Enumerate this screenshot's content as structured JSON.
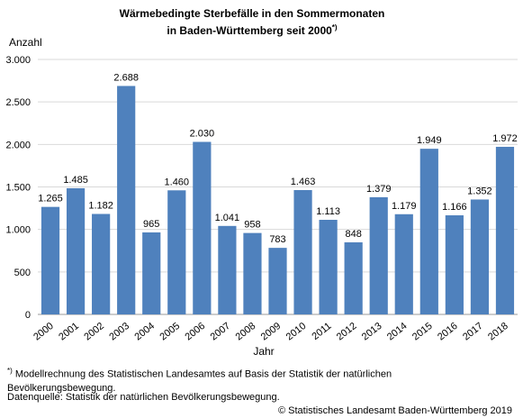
{
  "chart_data": {
    "type": "bar",
    "title_line1": "Wärmebedingte Sterbefälle in den Sommermonaten",
    "title_line2": "in Baden-Württemberg seit 2000",
    "title_note_mark": "*)",
    "ylabel": "Anzahl",
    "xlabel": "Jahr",
    "ylim": [
      0,
      3000
    ],
    "yticks": [
      0,
      500,
      1000,
      1500,
      2000,
      2500,
      3000
    ],
    "ytick_labels": [
      "0",
      "500",
      "1.000",
      "1.500",
      "2.000",
      "2.500",
      "3.000"
    ],
    "grid": true,
    "categories": [
      "2000",
      "2001",
      "2002",
      "2003",
      "2004",
      "2005",
      "2006",
      "2007",
      "2008",
      "2009",
      "2010",
      "2011",
      "2012",
      "2013",
      "2014",
      "2015",
      "2016",
      "2017",
      "2018"
    ],
    "values": [
      1265,
      1485,
      1182,
      2688,
      965,
      1460,
      2030,
      1041,
      958,
      783,
      1463,
      1113,
      848,
      1379,
      1179,
      1949,
      1166,
      1352,
      1972
    ],
    "value_labels": [
      "1.265",
      "1.485",
      "1.182",
      "2.688",
      "965",
      "1.460",
      "2.030",
      "1.041",
      "958",
      "783",
      "1.463",
      "1.113",
      "848",
      "1.379",
      "1.179",
      "1.949",
      "1.166",
      "1.352",
      "1.972"
    ],
    "bar_color": "#4f81bd"
  },
  "footnote": {
    "mark": "*)",
    "text": " Modellrechnung des Statistischen Landesamtes auf Basis der Statistik der natürlichen Bevölkerungsbewegung.",
    "source": "Datenquelle: Statistik der natürlichen Bevölkerungsbewegung."
  },
  "copyright": "© Statistisches Landesamt Baden-Württemberg 2019"
}
